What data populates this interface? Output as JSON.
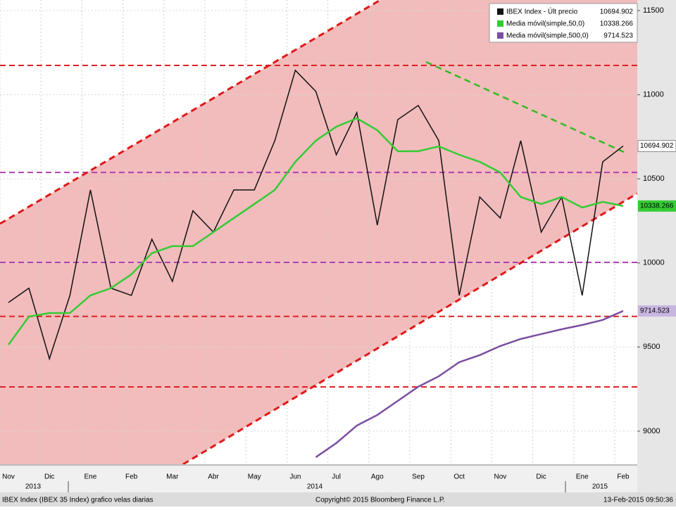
{
  "chart_data": {
    "type": "line",
    "categories": [
      "Nov",
      null,
      "Dic",
      null,
      "Ene",
      null,
      "Feb",
      null,
      "Mar",
      null,
      "Abr",
      null,
      "May",
      null,
      "Jun",
      null,
      "Jul",
      null,
      "Ago",
      null,
      "Sep",
      null,
      "Oct",
      null,
      "Nov",
      null,
      "Dic",
      null,
      "Ene",
      null,
      "Feb"
    ],
    "year_labels": [
      "2013",
      "2014",
      "2015"
    ],
    "series": [
      {
        "name": "IBEX Index - Últ precio",
        "color": "#111111",
        "values": [
          9765,
          9850,
          9430,
          9807,
          10434,
          9850,
          9807,
          10141,
          9890,
          10310,
          10183,
          10434,
          10434,
          10727,
          11145,
          11020,
          10643,
          10894,
          10225,
          10852,
          10936,
          10727,
          9807,
          10392,
          10267,
          10727,
          10183,
          10392,
          9807,
          10601,
          10694.902
        ]
      },
      {
        "name": "Media móvil(simple,50,0)",
        "color": "#33cc33",
        "values": [
          9514,
          9681,
          9702,
          9702,
          9807,
          9850,
          9932,
          10058,
          10100,
          10100,
          10183,
          10267,
          10350,
          10434,
          10601,
          10727,
          10810,
          10860,
          10789,
          10664,
          10664,
          10693,
          10643,
          10601,
          10538,
          10392,
          10350,
          10392,
          10329,
          10363,
          10338.266
        ]
      },
      {
        "name": "Media móvil(simple,500,0)",
        "color": "#7b4fa0",
        "values": [
          null,
          null,
          null,
          null,
          null,
          null,
          null,
          null,
          null,
          null,
          null,
          null,
          null,
          null,
          null,
          8845,
          8929,
          9033,
          9096,
          9180,
          9264,
          9326,
          9410,
          9452,
          9506,
          9548,
          9577,
          9606,
          9631,
          9661,
          9714.523
        ]
      }
    ],
    "reference_lines": [
      {
        "value": 11174,
        "color": "#dd2222"
      },
      {
        "value": 9682,
        "color": "#dd2222"
      },
      {
        "value": 9263,
        "color": "#dd2222"
      },
      {
        "value": 10538,
        "color": "#b040b0"
      },
      {
        "value": 10003,
        "color": "#b040b0"
      }
    ],
    "ylim": [
      8803,
      11563
    ],
    "yticks": [
      9000,
      9500,
      10000,
      10500,
      11000,
      11500
    ],
    "grid": true,
    "footer": {
      "left": "IBEX Index (IBEX 35 Index) grafico velas diarias",
      "center": "Copyright© 2015 Bloomberg Finance L.P.",
      "right": "13-Feb-2015 09:50:36"
    }
  }
}
